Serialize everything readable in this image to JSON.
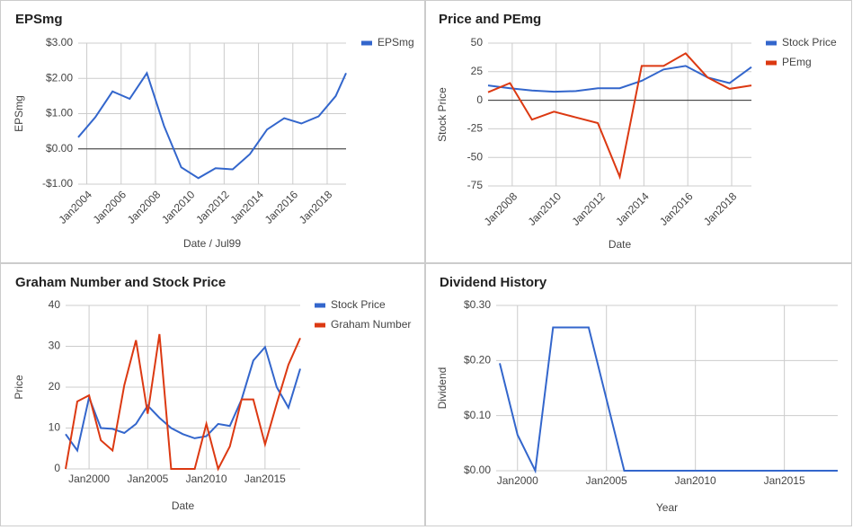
{
  "chart_data": [
    {
      "type": "line",
      "title": "EPSmg",
      "xlabel": "Date / Jul99",
      "ylabel": "EPSmg",
      "legend": "right",
      "xtick_rotation": 45,
      "x": [
        2003.5,
        2004.5,
        2005.5,
        2006.5,
        2007.5,
        2008.5,
        2009.5,
        2010.5,
        2011.5,
        2012.5,
        2013.5,
        2014.5,
        2015.5,
        2016.5,
        2017.5,
        2018.5,
        2019.1
      ],
      "series": [
        {
          "name": "EPSmg",
          "color": "#3366cc",
          "values": [
            0.33,
            0.9,
            1.63,
            1.42,
            2.15,
            0.65,
            -0.52,
            -0.83,
            -0.55,
            -0.58,
            -0.15,
            0.55,
            0.87,
            0.72,
            0.92,
            1.5,
            2.15
          ]
        }
      ],
      "xlim": [
        2003.5,
        2019.1
      ],
      "ylim": [
        -1,
        3
      ],
      "xticks": [
        {
          "value": 2004,
          "label": "Jan2004"
        },
        {
          "value": 2006,
          "label": "Jan2006"
        },
        {
          "value": 2008,
          "label": "Jan2008"
        },
        {
          "value": 2010,
          "label": "Jan2010"
        },
        {
          "value": 2012,
          "label": "Jan2012"
        },
        {
          "value": 2014,
          "label": "Jan2014"
        },
        {
          "value": 2016,
          "label": "Jan2016"
        },
        {
          "value": 2018,
          "label": "Jan2018"
        }
      ],
      "yticks": [
        {
          "value": 3,
          "label": "$3.00"
        },
        {
          "value": 2,
          "label": "$2.00"
        },
        {
          "value": 1,
          "label": "$1.00"
        },
        {
          "value": 0,
          "label": "$0.00"
        },
        {
          "value": -1,
          "label": "-$1.00"
        }
      ],
      "grid": true
    },
    {
      "type": "line",
      "title": "Price and PEmg",
      "xlabel": "Date",
      "ylabel": "Stock Price",
      "legend": "right",
      "xtick_rotation": 45,
      "x": [
        2006.9,
        2007.9,
        2008.9,
        2009.9,
        2010.9,
        2011.9,
        2012.9,
        2013.9,
        2014.9,
        2015.9,
        2016.9,
        2017.9,
        2018.9
      ],
      "series": [
        {
          "name": "Stock Price",
          "color": "#3366cc",
          "values": [
            13,
            10.5,
            8.5,
            7.5,
            8,
            10.5,
            10.5,
            17,
            27,
            30,
            20,
            15,
            29
          ]
        },
        {
          "name": "PEmg",
          "color": "#dc3912",
          "values": [
            7,
            15,
            -17,
            -10,
            -15,
            -20,
            -67,
            30,
            30,
            41,
            20,
            10,
            13
          ]
        }
      ],
      "xlim": [
        2006.9,
        2018.9
      ],
      "ylim": [
        -75,
        50
      ],
      "xticks": [
        {
          "value": 2008,
          "label": "Jan2008"
        },
        {
          "value": 2010,
          "label": "Jan2010"
        },
        {
          "value": 2012,
          "label": "Jan2012"
        },
        {
          "value": 2014,
          "label": "Jan2014"
        },
        {
          "value": 2016,
          "label": "Jan2016"
        },
        {
          "value": 2018,
          "label": "Jan2018"
        }
      ],
      "yticks": [
        50,
        25,
        0,
        -25,
        -50,
        -75
      ],
      "grid": true
    },
    {
      "type": "line",
      "title": "Graham Number and Stock Price",
      "xlabel": "Date",
      "ylabel": "Price",
      "legend": "right",
      "x": [
        1998,
        1999,
        2000,
        2001,
        2002,
        2003,
        2004,
        2005,
        2006,
        2007,
        2008,
        2009,
        2010,
        2011,
        2012,
        2013,
        2014,
        2015,
        2016,
        2017,
        2018
      ],
      "series": [
        {
          "name": "Stock Price",
          "color": "#3366cc",
          "values": [
            8.5,
            4.5,
            17.5,
            10,
            9.8,
            8.8,
            11,
            15.5,
            12.5,
            10,
            8.5,
            7.5,
            8,
            11,
            10.5,
            17,
            26.5,
            29.8,
            20,
            15,
            24.5
          ]
        },
        {
          "name": "Graham Number",
          "color": "#dc3912",
          "values": [
            0,
            16.5,
            18,
            7,
            4.5,
            20.5,
            31.5,
            13.5,
            33,
            0,
            0,
            0,
            11,
            0,
            5.5,
            17,
            17,
            6,
            16,
            25.5,
            32
          ]
        }
      ],
      "xlim": [
        1998,
        2018
      ],
      "ylim": [
        0,
        40
      ],
      "xticks": [
        {
          "value": 2000,
          "label": "Jan2000"
        },
        {
          "value": 2005,
          "label": "Jan2005"
        },
        {
          "value": 2010,
          "label": "Jan2010"
        },
        {
          "value": 2015,
          "label": "Jan2015"
        }
      ],
      "yticks": [
        40,
        30,
        20,
        10,
        0
      ],
      "grid": true
    },
    {
      "type": "line",
      "title": "Dividend History",
      "xlabel": "Year",
      "ylabel": "Dividend",
      "x": [
        1999,
        2000,
        2001,
        2002,
        2003,
        2004,
        2005,
        2006,
        2007,
        2008,
        2009,
        2010,
        2011,
        2012,
        2013,
        2014,
        2015,
        2016,
        2017,
        2018
      ],
      "series": [
        {
          "color": "#3366cc",
          "values": [
            0.195,
            0.065,
            0,
            0.26,
            0.26,
            0.26,
            0.13,
            0,
            0,
            0,
            0,
            0,
            0,
            0,
            0,
            0,
            0,
            0,
            0,
            0
          ]
        }
      ],
      "xlim": [
        1998.8,
        2018
      ],
      "ylim": [
        0,
        0.3
      ],
      "xticks": [
        {
          "value": 2000,
          "label": "Jan2000"
        },
        {
          "value": 2005,
          "label": "Jan2005"
        },
        {
          "value": 2010,
          "label": "Jan2010"
        },
        {
          "value": 2015,
          "label": "Jan2015"
        }
      ],
      "yticks": [
        {
          "value": 0.3,
          "label": "$0.30"
        },
        {
          "value": 0.2,
          "label": "$0.20"
        },
        {
          "value": 0.1,
          "label": "$0.10"
        },
        {
          "value": 0,
          "label": "$0.00"
        }
      ],
      "grid": true
    }
  ]
}
